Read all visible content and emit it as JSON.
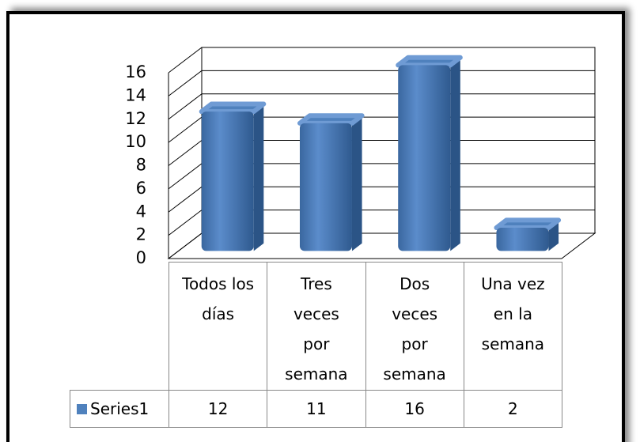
{
  "chart_data": {
    "type": "bar3d",
    "categories": [
      "Todos los días",
      "Tres veces por semana",
      "Dos veces por semana",
      "Una vez en la semana"
    ],
    "series": [
      {
        "name": "Series1",
        "color": "#4f81bd",
        "values": [
          12,
          11,
          16,
          2
        ]
      }
    ],
    "ylim": [
      0,
      16
    ],
    "yticks": [
      0,
      2,
      4,
      6,
      8,
      10,
      12,
      14,
      16
    ],
    "grid": true
  }
}
